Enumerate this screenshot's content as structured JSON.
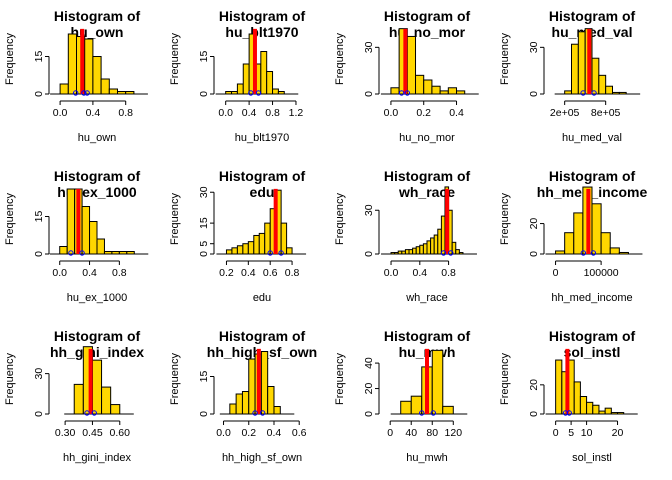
{
  "figure": {
    "colors": {
      "bar_fill": "#FFD700",
      "bar_stroke": "#000000",
      "mean_line": "#FF0000",
      "marker": "#0000FF",
      "background": "#FFFFFF"
    }
  },
  "chart_data": [
    {
      "type": "bar",
      "title": [
        "Histogram of",
        "hu_own"
      ],
      "xlabel": "hu_own",
      "ylabel": "Frequency",
      "xlim": [
        -0.05,
        0.95
      ],
      "ylim": [
        0,
        28
      ],
      "xticks": [
        0.0,
        0.4,
        0.8
      ],
      "xtick_labels": [
        "0.0",
        "0.4",
        "0.8"
      ],
      "yticks": [
        0,
        15
      ],
      "ytick_labels": [
        "0",
        "15"
      ],
      "bin_edges": [
        0.0,
        0.1,
        0.2,
        0.3,
        0.4,
        0.5,
        0.6,
        0.7,
        0.8,
        0.9
      ],
      "counts": [
        4,
        24,
        23,
        22,
        15,
        6,
        2,
        1,
        1
      ],
      "mean_line": 0.27,
      "markers": [
        0.19,
        0.29,
        0.33
      ]
    },
    {
      "type": "bar",
      "title": [
        "Histogram of",
        "hu_blt1970"
      ],
      "xlabel": "hu_blt1970",
      "ylabel": "Frequency",
      "xlim": [
        -0.08,
        1.32
      ],
      "ylim": [
        0,
        28
      ],
      "xticks": [
        0.0,
        0.4,
        0.8,
        1.2
      ],
      "xtick_labels": [
        "0.0",
        "0.4",
        "0.8",
        "1.2"
      ],
      "yticks": [
        0,
        15
      ],
      "ytick_labels": [
        "0",
        "15"
      ],
      "bin_edges": [
        0.0,
        0.1,
        0.2,
        0.3,
        0.4,
        0.5,
        0.6,
        0.7,
        0.8,
        0.9,
        1.0
      ],
      "counts": [
        1,
        1,
        4,
        12,
        24,
        12,
        17,
        9,
        2,
        1
      ],
      "mean_line": 0.5,
      "markers": [
        0.43,
        0.56
      ]
    },
    {
      "type": "bar",
      "title": [
        "Histogram of",
        "hu_no_mor"
      ],
      "xlabel": "hu_no_mor",
      "ylabel": "Frequency",
      "xlim": [
        -0.03,
        0.47
      ],
      "ylim": [
        0,
        45
      ],
      "xticks": [
        0.0,
        0.2,
        0.4
      ],
      "xtick_labels": [
        "0.0",
        "0.2",
        "0.4"
      ],
      "yticks": [
        0,
        30
      ],
      "ytick_labels": [
        "0",
        "30"
      ],
      "bin_edges": [
        0.0,
        0.05,
        0.1,
        0.15,
        0.2,
        0.25,
        0.3,
        0.35,
        0.4,
        0.45
      ],
      "counts": [
        4,
        42,
        37,
        12,
        9,
        5,
        2,
        4,
        2
      ],
      "mean_line": 0.088,
      "markers": [
        0.065,
        0.1
      ]
    },
    {
      "type": "bar",
      "title": [
        "Histogram of",
        "hu_med_val"
      ],
      "xlabel": "hu_med_val",
      "ylabel": "Frequency",
      "xlim": [
        0,
        1200000
      ],
      "ylim": [
        0,
        45
      ],
      "xticks": [
        200000,
        800000
      ],
      "xtick_labels": [
        "2e+05",
        "8e+05"
      ],
      "yticks": [
        0,
        30
      ],
      "ytick_labels": [
        "0",
        "30"
      ],
      "bin_edges": [
        200000,
        300000,
        400000,
        500000,
        600000,
        700000,
        800000,
        900000,
        1000000,
        1100000
      ],
      "counts": [
        2,
        32,
        40,
        42,
        23,
        12,
        5,
        1,
        1
      ],
      "mean_line": 560000,
      "markers": [
        470000,
        630000
      ]
    },
    {
      "type": "bar",
      "title": [
        "Histogram of",
        "hu_ex_1000"
      ],
      "xlabel": "hu_ex_1000",
      "ylabel": "Frequency",
      "xlim": [
        -0.05,
        1.05
      ],
      "ylim": [
        0,
        28
      ],
      "xticks": [
        0.0,
        0.4,
        0.8
      ],
      "xtick_labels": [
        "0.0",
        "0.4",
        "0.8"
      ],
      "yticks": [
        0,
        15
      ],
      "ytick_labels": [
        "0",
        "15"
      ],
      "bin_edges": [
        0.0,
        0.1,
        0.2,
        0.3,
        0.4,
        0.5,
        0.6,
        0.7,
        0.8,
        0.9,
        1.0
      ],
      "counts": [
        3,
        26,
        26,
        19,
        13,
        6,
        1,
        1,
        1,
        1
      ],
      "mean_line": 0.25,
      "markers": [
        0.15,
        0.3
      ]
    },
    {
      "type": "bar",
      "title": [
        "Histogram of",
        "edu"
      ],
      "xlabel": "edu",
      "ylabel": "Frequency",
      "xlim": [
        0.15,
        0.9
      ],
      "ylim": [
        0,
        34
      ],
      "xticks": [
        0.2,
        0.4,
        0.6,
        0.8
      ],
      "xtick_labels": [
        "0.2",
        "0.4",
        "0.6",
        "0.8"
      ],
      "yticks": [
        0,
        5,
        15,
        30
      ],
      "ytick_labels": [
        "0",
        "5",
        "15",
        "30"
      ],
      "bin_edges": [
        0.2,
        0.25,
        0.3,
        0.35,
        0.4,
        0.45,
        0.5,
        0.55,
        0.6,
        0.65,
        0.7,
        0.75,
        0.8
      ],
      "counts": [
        2,
        3,
        4,
        5,
        6,
        9,
        10,
        15,
        22,
        31,
        15,
        3
      ],
      "mean_line": 0.65,
      "markers": [
        0.6,
        0.7
      ]
    },
    {
      "type": "bar",
      "title": [
        "Histogram of",
        "wh_race"
      ],
      "xlabel": "wh_race",
      "ylabel": "Frequency",
      "xlim": [
        -0.07,
        1.07
      ],
      "ylim": [
        0,
        48
      ],
      "xticks": [
        0.0,
        0.4,
        0.8
      ],
      "xtick_labels": [
        "0.0",
        "0.4",
        "0.8"
      ],
      "yticks": [
        0,
        30
      ],
      "ytick_labels": [
        "0",
        "30"
      ],
      "bin_edges": [
        0.0,
        0.05,
        0.1,
        0.15,
        0.2,
        0.25,
        0.3,
        0.35,
        0.4,
        0.45,
        0.5,
        0.55,
        0.6,
        0.65,
        0.7,
        0.75,
        0.8,
        0.85,
        0.9,
        0.95,
        1.0
      ],
      "counts": [
        1,
        1,
        2,
        2,
        3,
        3,
        4,
        5,
        6,
        7,
        9,
        11,
        13,
        17,
        26,
        46,
        30,
        8,
        3,
        1
      ],
      "mean_line": 0.78,
      "markers": [
        0.73,
        0.83
      ]
    },
    {
      "type": "bar",
      "title": [
        "Histogram of",
        "hh_med_income"
      ],
      "xlabel": "hh_med_income",
      "ylabel": "Frequency",
      "xlim": [
        -10000,
        170000
      ],
      "ylim": [
        0,
        46
      ],
      "xticks": [
        0,
        100000
      ],
      "xtick_labels": [
        "0",
        "100000"
      ],
      "yticks": [
        0,
        20
      ],
      "ytick_labels": [
        "0",
        "20"
      ],
      "bin_edges": [
        0,
        20000,
        40000,
        60000,
        80000,
        100000,
        120000,
        140000,
        160000
      ],
      "counts": [
        2,
        14,
        27,
        44,
        33,
        14,
        4,
        1
      ],
      "mean_line": 72000,
      "markers": [
        61000,
        83000
      ]
    },
    {
      "type": "bar",
      "title": [
        "Histogram of",
        "hh_gini_index"
      ],
      "xlabel": "hh_gini_index",
      "ylabel": "Frequency",
      "xlim": [
        0.25,
        0.7
      ],
      "ylim": [
        0,
        52
      ],
      "xticks": [
        0.3,
        0.45,
        0.6
      ],
      "xtick_labels": [
        "0.30",
        "0.45",
        "0.60"
      ],
      "yticks": [
        0,
        30
      ],
      "ytick_labels": [
        "0",
        "30"
      ],
      "bin_edges": [
        0.35,
        0.4,
        0.45,
        0.5,
        0.55,
        0.6
      ],
      "counts": [
        22,
        50,
        40,
        20,
        7
      ],
      "mean_line": 0.44,
      "markers": [
        0.42,
        0.46
      ]
    },
    {
      "type": "bar",
      "title": [
        "Histogram of",
        "hh_high_sf_own"
      ],
      "xlabel": "hh_high_sf_own",
      "ylabel": "Frequency",
      "xlim": [
        -0.02,
        0.63
      ],
      "ylim": [
        0,
        28
      ],
      "xticks": [
        0.0,
        0.2,
        0.4,
        0.6
      ],
      "xtick_labels": [
        "0.0",
        "0.2",
        "0.4",
        "0.6"
      ],
      "yticks": [
        0,
        15
      ],
      "ytick_labels": [
        "0",
        "15"
      ],
      "bin_edges": [
        0.05,
        0.1,
        0.15,
        0.2,
        0.25,
        0.3,
        0.35,
        0.4,
        0.45
      ],
      "counts": [
        4,
        8,
        9,
        22,
        24,
        25,
        11,
        3
      ],
      "mean_line": 0.28,
      "markers": [
        0.25,
        0.31
      ]
    },
    {
      "type": "bar",
      "title": [
        "Histogram of",
        "hu_mwh"
      ],
      "xlabel": "hu_mwh",
      "ylabel": "Frequency",
      "xlim": [
        -8,
        148
      ],
      "ylim": [
        0,
        55
      ],
      "xticks": [
        0,
        40,
        80,
        120
      ],
      "xtick_labels": [
        "0",
        "40",
        "80",
        "120"
      ],
      "yticks": [
        0,
        20,
        40
      ],
      "ytick_labels": [
        "0",
        "20",
        "40"
      ],
      "bin_edges": [
        20,
        40,
        60,
        80,
        100,
        120
      ],
      "counts": [
        10,
        14,
        37,
        50,
        6
      ],
      "mean_line": 70,
      "markers": [
        60,
        82
      ]
    },
    {
      "type": "bar",
      "title": [
        "Histogram of",
        "sol_instl"
      ],
      "xlabel": "sol_instl",
      "ylabel": "Frequency",
      "xlim": [
        -1.5,
        25
      ],
      "ylim": [
        0,
        48
      ],
      "xticks": [
        0,
        5,
        10,
        20
      ],
      "xtick_labels": [
        "0",
        "5",
        "10",
        "20"
      ],
      "yticks": [
        0,
        20
      ],
      "ytick_labels": [
        "0",
        "20"
      ],
      "bin_edges": [
        0,
        2,
        4,
        6,
        8,
        10,
        12,
        14,
        16,
        18,
        20,
        22
      ],
      "counts": [
        37,
        29,
        37,
        22,
        12,
        8,
        6,
        2,
        4,
        1,
        1
      ],
      "mean_line": 3.8,
      "markers": [
        3.2,
        4.4
      ]
    }
  ]
}
